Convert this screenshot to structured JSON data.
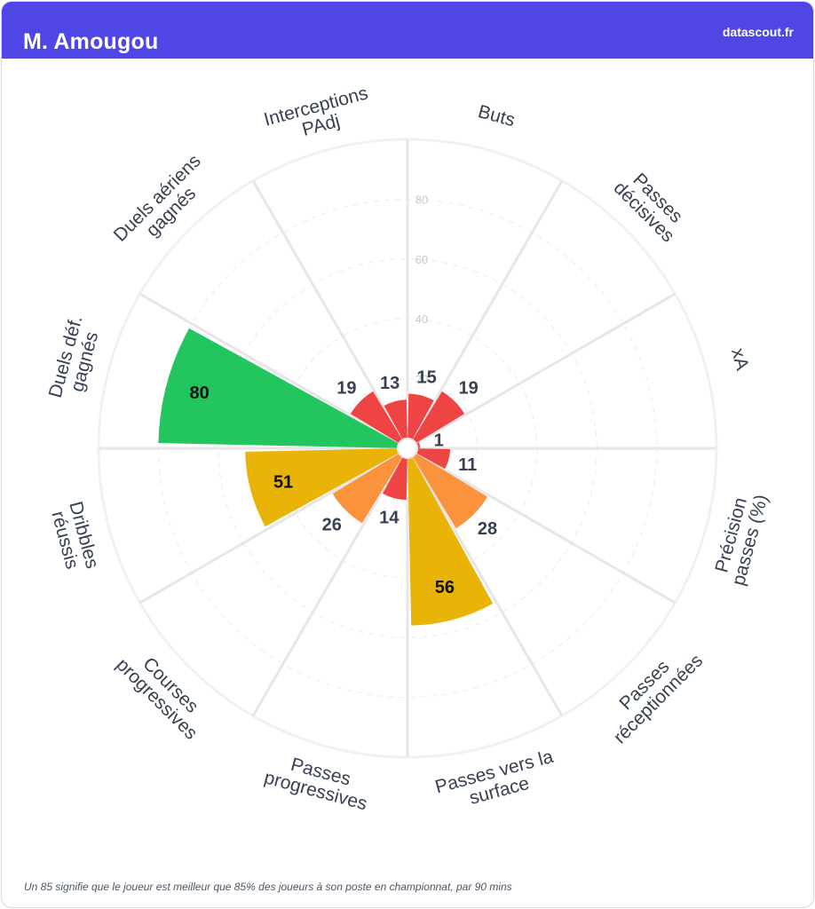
{
  "header": {
    "title": "M. Amougou",
    "brand": "datascout.fr"
  },
  "footnote": "Un 85 signifie que le joueur est meilleur que 85% des joueurs à son poste en championnat, par 90 mins",
  "colors": {
    "header_bg": "#4f46e5",
    "red": "#ef4444",
    "orange": "#fb923c",
    "gold": "#eab308",
    "green": "#22c55e"
  },
  "chart_data": {
    "type": "polar-bar",
    "range": [
      0,
      100
    ],
    "ticks": [
      "20",
      "40",
      "60",
      "80"
    ],
    "categories": [
      {
        "label": [
          "Buts"
        ],
        "value": 15
      },
      {
        "label": [
          "Passes",
          "décisives"
        ],
        "value": 19
      },
      {
        "label": [
          "xA"
        ],
        "value": 1
      },
      {
        "label": [
          "Précision",
          "passes (%)"
        ],
        "value": 11
      },
      {
        "label": [
          "Passes",
          "réceptionnées"
        ],
        "value": 28
      },
      {
        "label": [
          "Passes vers la",
          "surface"
        ],
        "value": 56
      },
      {
        "label": [
          "Passes",
          "progressives"
        ],
        "value": 14
      },
      {
        "label": [
          "Courses",
          "progressives"
        ],
        "value": 26
      },
      {
        "label": [
          "Dribbles",
          "réussis"
        ],
        "value": 51
      },
      {
        "label": [
          "Duels déf.",
          "gagnés"
        ],
        "value": 80
      },
      {
        "label": [
          "Duels aériens",
          "gagnés"
        ],
        "value": 19
      },
      {
        "label": [
          "Interceptions",
          "PAdj"
        ],
        "value": 13
      }
    ]
  }
}
